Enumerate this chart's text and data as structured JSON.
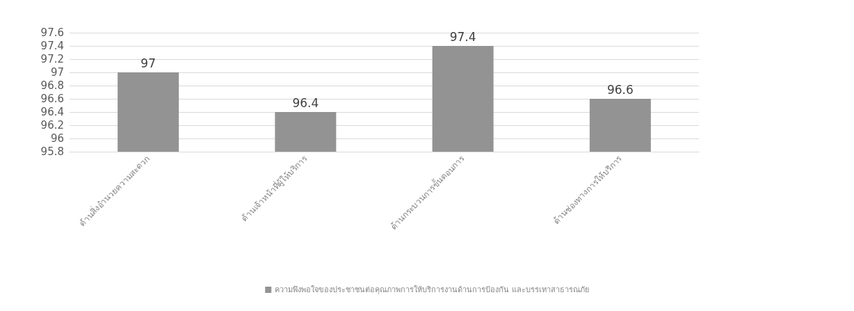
{
  "chart_data": {
    "type": "bar",
    "categories": [
      "ด้านสิ่งอำนวยความสะดวก",
      "ด้านเจ้าหน้าที่ผู้ให้บริการ",
      "ด้านกระบวนการขั้นตอนการ",
      "ด้านช่องทางการให้บริการ"
    ],
    "series": [
      {
        "name": "ความพึงพอใจของประชาชนต่อคุณภาพการให้บริการงานด้านการป้องกัน และบรรเทาสาธารณภัย",
        "color": "#939393",
        "values": [
          97,
          96.4,
          97.4,
          96.6
        ]
      }
    ],
    "ylim": [
      95.8,
      97.6
    ],
    "yticks": [
      95.8,
      96,
      96.2,
      96.4,
      96.6,
      96.8,
      97,
      97.2,
      97.4,
      97.6
    ],
    "grid": true,
    "legend": "bottom",
    "data_labels": true
  }
}
